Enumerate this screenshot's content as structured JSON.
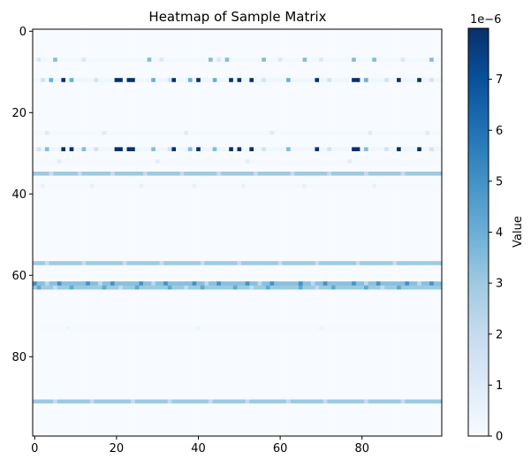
{
  "chart_data": {
    "type": "heatmap",
    "title": "Heatmap of Sample Matrix",
    "xlabel": "",
    "ylabel": "",
    "rows": 100,
    "cols": 100,
    "x_ticks": [
      0,
      20,
      40,
      60,
      80
    ],
    "y_ticks": [
      0,
      20,
      40,
      60,
      80
    ],
    "colormap": "Blues",
    "colormap_stops": [
      "#f7fbff",
      "#deebf7",
      "#c6dbef",
      "#9ecae1",
      "#6baed6",
      "#4292c6",
      "#2171b5",
      "#08519c",
      "#08306b"
    ],
    "colorbar": {
      "label": "Value",
      "exponent_label": "1e−6",
      "vmin": 0,
      "vmax": 8.0,
      "ticks": [
        0,
        1,
        2,
        3,
        4,
        5,
        6,
        7
      ]
    },
    "background_value": 0.0,
    "row_bands": [
      {
        "row": 7,
        "base": 0.2,
        "pattern": [
          {
            "cols": [
              5,
              28,
              43,
              47,
              56,
              66,
              78,
              83,
              97
            ],
            "value": 3.5
          },
          {
            "cols": [
              1,
              12,
              31,
              45,
              60,
              70,
              90
            ],
            "value": 1.2
          }
        ]
      },
      {
        "row": 12,
        "base": 0.3,
        "pattern": [
          {
            "cols": [
              7,
              20,
              21,
              23,
              24,
              34,
              40,
              48,
              50,
              53,
              69,
              78,
              79,
              89,
              94
            ],
            "value": 8.0
          },
          {
            "cols": [
              4,
              9,
              29,
              38,
              44,
              62,
              81
            ],
            "value": 4.0
          },
          {
            "cols": [
              2,
              15,
              33,
              56,
              72,
              86,
              97
            ],
            "value": 1.5
          }
        ]
      },
      {
        "row": 25,
        "base": 0.15,
        "pattern": [
          {
            "cols": [
              3,
              17,
              37,
              58,
              82,
              96
            ],
            "value": 1.0
          }
        ]
      },
      {
        "row": 29,
        "base": 0.3,
        "pattern": [
          {
            "cols": [
              7,
              9,
              20,
              21,
              23,
              24,
              34,
              40,
              48,
              50,
              53,
              69,
              78,
              79,
              89,
              94
            ],
            "value": 8.0
          },
          {
            "cols": [
              3,
              12,
              29,
              38,
              44,
              62,
              81
            ],
            "value": 3.5
          },
          {
            "cols": [
              1,
              15,
              33,
              56,
              72,
              86,
              97
            ],
            "value": 1.5
          }
        ]
      },
      {
        "row": 32,
        "base": 0.1,
        "pattern": [
          {
            "cols": [
              6,
              30,
              52,
              77
            ],
            "value": 0.8
          }
        ]
      },
      {
        "row": 35,
        "base": 3.0,
        "pattern": [
          {
            "cols": [
              4,
              11,
              19,
              27,
              36,
              45,
              54,
              63,
              72,
              81,
              90
            ],
            "value": 2.0
          }
        ]
      },
      {
        "row": 38,
        "base": 0.1,
        "pattern": [
          {
            "cols": [
              2,
              14,
              26,
              39,
              51,
              66,
              83
            ],
            "value": 0.6
          }
        ]
      },
      {
        "row": 57,
        "base": 3.0,
        "pattern": [
          {
            "cols": [
              3,
              12,
              22,
              31,
              41,
              50,
              60,
              69,
              79,
              88
            ],
            "value": 2.0
          }
        ]
      },
      {
        "row": 62,
        "base": 3.4,
        "pattern": [
          {
            "cols": [
              0,
              6,
              13,
              19,
              26,
              32,
              39,
              45,
              52,
              58,
              65,
              71,
              78,
              84,
              91,
              97
            ],
            "value": 5.0
          },
          {
            "cols": [
              3,
              16,
              29,
              42,
              55,
              68,
              81,
              94
            ],
            "value": 2.2
          }
        ]
      },
      {
        "row": 63,
        "base": 3.0,
        "pattern": [
          {
            "cols": [
              1,
              9,
              17,
              25,
              33,
              41,
              49,
              57,
              65,
              73,
              81,
              89
            ],
            "value": 4.2
          },
          {
            "cols": [
              5,
              21,
              37,
              53,
              69,
              85
            ],
            "value": 2.0
          }
        ]
      },
      {
        "row": 73,
        "base": 0.05,
        "pattern": [
          {
            "cols": [
              8,
              40,
              70
            ],
            "value": 0.4
          }
        ]
      },
      {
        "row": 91,
        "base": 3.0,
        "pattern": [
          {
            "cols": [
              5,
              14,
              24,
              33,
              43,
              52,
              62,
              71,
              81,
              90
            ],
            "value": 2.0
          }
        ]
      }
    ]
  }
}
